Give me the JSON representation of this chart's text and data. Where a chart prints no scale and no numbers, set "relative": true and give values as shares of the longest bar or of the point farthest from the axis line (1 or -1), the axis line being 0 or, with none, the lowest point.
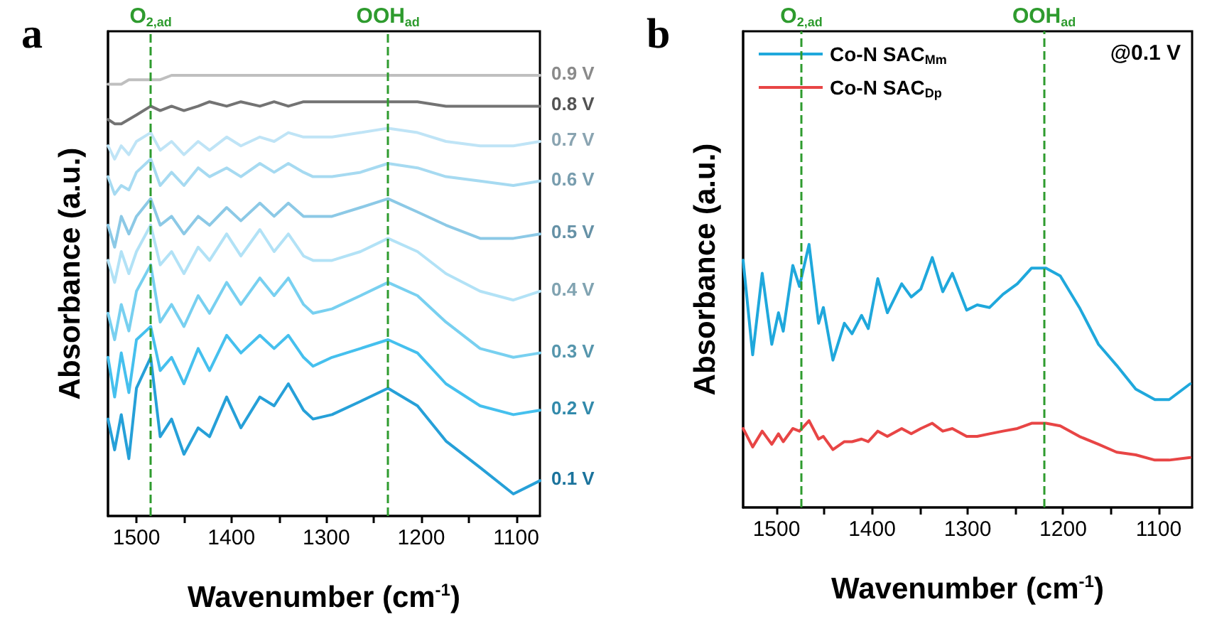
{
  "chart_data": [
    {
      "type": "line",
      "title": "a",
      "xlabel": "Wavenumber (cm$^{-1}$)",
      "ylabel": "Absorbance (a.u.)",
      "relative": true,
      "tick_labels": "x",
      "grid": false,
      "legend": false,
      "marker": "none",
      "line_style": "solid",
      "xlim": [
        1530,
        1075
      ],
      "xticks": [
        1500,
        {
          "value": 1450,
          "label": null
        },
        1400,
        {
          "value": 1350,
          "label": null
        },
        1300,
        {
          "value": 1250,
          "label": null
        },
        1200,
        {
          "value": 1150,
          "label": null
        },
        1100
      ],
      "x": [
        1530,
        1523,
        1516,
        1508,
        1500,
        1485,
        1475,
        1463,
        1450,
        1435,
        1423,
        1405,
        1390,
        1370,
        1355,
        1340,
        1324,
        1314,
        1294,
        1264,
        1235,
        1204,
        1174,
        1138,
        1103,
        1075
      ],
      "series": [
        {
          "name": "0.9 V",
          "color": "#bfbfbf",
          "values": [
            0.98,
            0.98,
            0.98,
            0.99,
            0.99,
            0.99,
            0.99,
            1.0,
            1.0,
            1.0,
            1.0,
            1.0,
            1.0,
            1.0,
            1.0,
            1.0,
            1.0,
            1.0,
            1.0,
            1.0,
            1.0,
            1.0,
            1.0,
            1.0,
            1.0,
            1.0
          ]
        },
        {
          "name": "0.8 V",
          "color": "#737373",
          "values": [
            0.9,
            0.89,
            0.89,
            0.9,
            0.91,
            0.93,
            0.92,
            0.93,
            0.92,
            0.93,
            0.94,
            0.93,
            0.94,
            0.93,
            0.94,
            0.93,
            0.94,
            0.94,
            0.94,
            0.94,
            0.94,
            0.94,
            0.93,
            0.93,
            0.93,
            0.93
          ]
        },
        {
          "name": "0.7 V",
          "color": "#bfe4f6",
          "values": [
            0.84,
            0.81,
            0.84,
            0.82,
            0.85,
            0.87,
            0.83,
            0.85,
            0.82,
            0.85,
            0.83,
            0.86,
            0.84,
            0.86,
            0.85,
            0.87,
            0.86,
            0.86,
            0.86,
            0.87,
            0.88,
            0.87,
            0.85,
            0.84,
            0.84,
            0.85
          ]
        },
        {
          "name": "0.6 V",
          "color": "#a6daf1",
          "values": [
            0.77,
            0.73,
            0.75,
            0.74,
            0.78,
            0.81,
            0.75,
            0.78,
            0.75,
            0.79,
            0.77,
            0.79,
            0.77,
            0.8,
            0.78,
            0.8,
            0.78,
            0.77,
            0.77,
            0.78,
            0.8,
            0.79,
            0.77,
            0.76,
            0.75,
            0.76
          ]
        },
        {
          "name": "0.5 V",
          "color": "#8cc9e6",
          "values": [
            0.66,
            0.61,
            0.68,
            0.64,
            0.68,
            0.72,
            0.66,
            0.68,
            0.64,
            0.68,
            0.66,
            0.7,
            0.67,
            0.71,
            0.68,
            0.71,
            0.68,
            0.68,
            0.68,
            0.7,
            0.72,
            0.69,
            0.66,
            0.63,
            0.63,
            0.64
          ]
        },
        {
          "name": "0.4 V",
          "color": "#b2e2f6",
          "values": [
            0.58,
            0.53,
            0.6,
            0.55,
            0.6,
            0.66,
            0.57,
            0.6,
            0.55,
            0.61,
            0.58,
            0.64,
            0.59,
            0.65,
            0.6,
            0.64,
            0.59,
            0.58,
            0.58,
            0.6,
            0.63,
            0.6,
            0.55,
            0.51,
            0.49,
            0.51
          ]
        },
        {
          "name": "0.3 V",
          "color": "#78d0f0",
          "values": [
            0.46,
            0.4,
            0.48,
            0.42,
            0.51,
            0.57,
            0.44,
            0.48,
            0.43,
            0.5,
            0.46,
            0.53,
            0.48,
            0.54,
            0.5,
            0.54,
            0.48,
            0.46,
            0.47,
            0.5,
            0.53,
            0.5,
            0.44,
            0.38,
            0.36,
            0.37
          ]
        },
        {
          "name": "0.2 V",
          "color": "#45c0ee",
          "values": [
            0.36,
            0.27,
            0.37,
            0.28,
            0.4,
            0.43,
            0.33,
            0.36,
            0.3,
            0.38,
            0.33,
            0.41,
            0.37,
            0.41,
            0.38,
            0.41,
            0.36,
            0.34,
            0.36,
            0.38,
            0.4,
            0.37,
            0.3,
            0.25,
            0.23,
            0.24
          ]
        },
        {
          "name": "0.1 V",
          "color": "#26a0d8",
          "values": [
            0.22,
            0.15,
            0.23,
            0.13,
            0.29,
            0.36,
            0.18,
            0.22,
            0.14,
            0.2,
            0.18,
            0.27,
            0.2,
            0.27,
            0.25,
            0.3,
            0.24,
            0.22,
            0.23,
            0.26,
            0.29,
            0.25,
            0.17,
            0.11,
            0.05,
            0.08
          ]
        }
      ],
      "ref_lines": [
        {
          "axis": "x",
          "value": 1485,
          "label": "O$_{2,ad}$",
          "color": "#2e9b2e",
          "line_style": "dashed"
        },
        {
          "axis": "x",
          "value": 1235,
          "label": "OOH$_{ad}$",
          "color": "#2e9b2e",
          "line_style": "dashed"
        }
      ]
    },
    {
      "type": "line",
      "title": "b",
      "xlabel": "Wavenumber (cm$^{-1}$)",
      "ylabel": "Absorbance (a.u.)",
      "relative": true,
      "tick_labels": "x",
      "grid": false,
      "legend": "top left",
      "marker": "none",
      "line_style": "solid",
      "annotations": [
        "@0.1 V"
      ],
      "xlim": [
        1535,
        1065
      ],
      "xticks": [
        1500,
        {
          "value": 1450,
          "label": null
        },
        1400,
        {
          "value": 1350,
          "label": null
        },
        1300,
        {
          "value": 1250,
          "label": null
        },
        1200,
        {
          "value": 1150,
          "label": null
        },
        1100
      ],
      "x": [
        1535,
        1525,
        1515,
        1505,
        1498,
        1493,
        1483,
        1476,
        1466,
        1456,
        1451,
        1441,
        1429,
        1421,
        1411,
        1404,
        1394,
        1384,
        1369,
        1359,
        1349,
        1337,
        1326,
        1316,
        1301,
        1290,
        1277,
        1263,
        1248,
        1233,
        1218,
        1203,
        1183,
        1163,
        1144,
        1124,
        1104,
        1089,
        1067
      ],
      "series": [
        {
          "name": "Co-N SAC$_{Mm}$",
          "color": "#1fa8dc",
          "values": [
            0.94,
            0.58,
            0.89,
            0.62,
            0.74,
            0.67,
            0.92,
            0.84,
            1.0,
            0.7,
            0.76,
            0.56,
            0.7,
            0.66,
            0.73,
            0.68,
            0.87,
            0.74,
            0.85,
            0.8,
            0.83,
            0.95,
            0.82,
            0.89,
            0.75,
            0.77,
            0.76,
            0.81,
            0.85,
            0.91,
            0.91,
            0.88,
            0.76,
            0.62,
            0.54,
            0.45,
            0.41,
            0.41,
            0.47
          ]
        },
        {
          "name": "Co-N SAC$_{Dp}$",
          "color": "#e84545",
          "values": [
            0.3,
            0.23,
            0.29,
            0.24,
            0.28,
            0.25,
            0.3,
            0.29,
            0.33,
            0.26,
            0.27,
            0.22,
            0.25,
            0.25,
            0.26,
            0.25,
            0.29,
            0.27,
            0.3,
            0.28,
            0.3,
            0.32,
            0.29,
            0.3,
            0.27,
            0.27,
            0.28,
            0.29,
            0.3,
            0.32,
            0.32,
            0.31,
            0.27,
            0.24,
            0.21,
            0.2,
            0.18,
            0.18,
            0.19
          ]
        }
      ],
      "ref_lines": [
        {
          "axis": "x",
          "value": 1474,
          "label": "O$_{2,ad}$",
          "color": "#2e9b2e",
          "line_style": "dashed"
        },
        {
          "axis": "x",
          "value": 1220,
          "label": "OOH$_{ad}$",
          "color": "#2e9b2e",
          "line_style": "dashed"
        }
      ]
    }
  ]
}
